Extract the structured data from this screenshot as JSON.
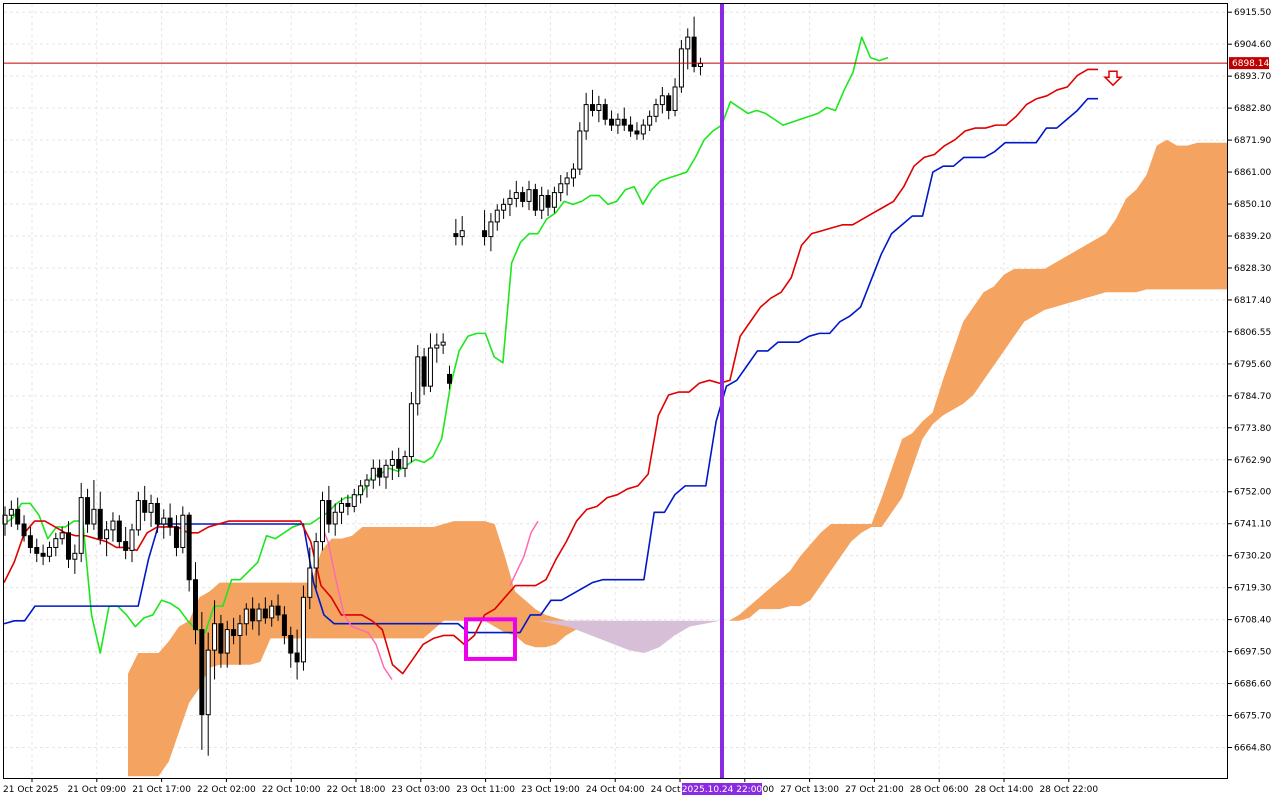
{
  "chart_data": {
    "type": "candlestick",
    "indicator": "ichimoku",
    "colors": {
      "background": "#ffffff",
      "grid": "#e6e6e6",
      "candle_body_up": "#ffffff",
      "candle_body_down": "#000000",
      "candle_wick": "#000000",
      "tenkan": "#e00000",
      "kijun": "#0018c8",
      "chikou": "#1ee61e",
      "cloud_bull": "#f4a460",
      "cloud_bear": "#d8bfd8",
      "current_price_line": "#c00000",
      "current_price_tag": "#c00000",
      "vertical_marker": "#8a2be2",
      "highlight_box": "#ee00ee",
      "pink_segment": "#ff69b4",
      "arrow": "#e00000"
    },
    "y_axis": {
      "ylim": [
        6654.4,
        6918.3
      ],
      "ticks": [
        "6915.50",
        "6904.60",
        "6893.70",
        "6882.80",
        "6871.90",
        "6861.00",
        "6850.10",
        "6839.20",
        "6828.30",
        "6817.40",
        "6806.55",
        "6795.60",
        "6784.70",
        "6773.80",
        "6762.90",
        "6752.00",
        "6741.10",
        "6730.20",
        "6719.30",
        "6708.40",
        "6697.50",
        "6686.60",
        "6675.70",
        "6664.80"
      ]
    },
    "x_axis": {
      "ticks": [
        "21 Oct 2025",
        "21 Oct 09:00",
        "21 Oct 17:00",
        "22 Oct 02:00",
        "22 Oct 10:00",
        "22 Oct 18:00",
        "23 Oct 03:00",
        "23 Oct 11:00",
        "23 Oct 19:00",
        "24 Oct 04:00",
        "24 Oct 12:00",
        "27 Oct 05:00",
        "27 Oct 13:00",
        "27 Oct 21:00",
        "28 Oct 06:00",
        "28 Oct 14:00",
        "28 Oct 22:00"
      ],
      "marker_label": "2025.10.24 22:00"
    },
    "current_price": "6898.14",
    "candles": [
      {
        "o": 6741,
        "h": 6747,
        "l": 6737,
        "c": 6744
      },
      {
        "o": 6744,
        "h": 6749,
        "l": 6740,
        "c": 6746
      },
      {
        "o": 6746,
        "h": 6750,
        "l": 6739,
        "c": 6741
      },
      {
        "o": 6741,
        "h": 6744,
        "l": 6735,
        "c": 6737
      },
      {
        "o": 6737,
        "h": 6740,
        "l": 6731,
        "c": 6733
      },
      {
        "o": 6733,
        "h": 6736,
        "l": 6728,
        "c": 6731
      },
      {
        "o": 6731,
        "h": 6734,
        "l": 6727,
        "c": 6730
      },
      {
        "o": 6730,
        "h": 6735,
        "l": 6728,
        "c": 6733
      },
      {
        "o": 6733,
        "h": 6738,
        "l": 6730,
        "c": 6736
      },
      {
        "o": 6736,
        "h": 6740,
        "l": 6734,
        "c": 6738
      },
      {
        "o": 6738,
        "h": 6742,
        "l": 6726,
        "c": 6729
      },
      {
        "o": 6729,
        "h": 6734,
        "l": 6724,
        "c": 6731
      },
      {
        "o": 6731,
        "h": 6755,
        "l": 6728,
        "c": 6750
      },
      {
        "o": 6750,
        "h": 6753,
        "l": 6738,
        "c": 6741
      },
      {
        "o": 6741,
        "h": 6756,
        "l": 6739,
        "c": 6746
      },
      {
        "o": 6746,
        "h": 6752,
        "l": 6734,
        "c": 6736
      },
      {
        "o": 6736,
        "h": 6742,
        "l": 6730,
        "c": 6739
      },
      {
        "o": 6739,
        "h": 6745,
        "l": 6735,
        "c": 6742
      },
      {
        "o": 6742,
        "h": 6744,
        "l": 6733,
        "c": 6735
      },
      {
        "o": 6735,
        "h": 6740,
        "l": 6729,
        "c": 6732
      },
      {
        "o": 6732,
        "h": 6741,
        "l": 6728,
        "c": 6739
      },
      {
        "o": 6739,
        "h": 6752,
        "l": 6737,
        "c": 6749
      },
      {
        "o": 6749,
        "h": 6754,
        "l": 6742,
        "c": 6745
      },
      {
        "o": 6745,
        "h": 6751,
        "l": 6740,
        "c": 6748
      },
      {
        "o": 6748,
        "h": 6750,
        "l": 6738,
        "c": 6741
      },
      {
        "o": 6741,
        "h": 6746,
        "l": 6736,
        "c": 6743
      },
      {
        "o": 6743,
        "h": 6748,
        "l": 6737,
        "c": 6740
      },
      {
        "o": 6740,
        "h": 6744,
        "l": 6730,
        "c": 6733
      },
      {
        "o": 6733,
        "h": 6747,
        "l": 6731,
        "c": 6744
      },
      {
        "o": 6744,
        "h": 6745,
        "l": 6718,
        "c": 6722
      },
      {
        "o": 6722,
        "h": 6728,
        "l": 6700,
        "c": 6705
      },
      {
        "o": 6705,
        "h": 6711,
        "l": 6664,
        "c": 6676
      },
      {
        "o": 6676,
        "h": 6704,
        "l": 6662,
        "c": 6698
      },
      {
        "o": 6698,
        "h": 6715,
        "l": 6688,
        "c": 6707
      },
      {
        "o": 6707,
        "h": 6710,
        "l": 6692,
        "c": 6697
      },
      {
        "o": 6697,
        "h": 6708,
        "l": 6692,
        "c": 6705
      },
      {
        "o": 6705,
        "h": 6709,
        "l": 6700,
        "c": 6703
      },
      {
        "o": 6703,
        "h": 6710,
        "l": 6693,
        "c": 6707
      },
      {
        "o": 6707,
        "h": 6714,
        "l": 6703,
        "c": 6712
      },
      {
        "o": 6712,
        "h": 6716,
        "l": 6705,
        "c": 6708
      },
      {
        "o": 6708,
        "h": 6714,
        "l": 6703,
        "c": 6712
      },
      {
        "o": 6712,
        "h": 6716,
        "l": 6707,
        "c": 6709
      },
      {
        "o": 6709,
        "h": 6715,
        "l": 6706,
        "c": 6713
      },
      {
        "o": 6713,
        "h": 6717,
        "l": 6708,
        "c": 6710
      },
      {
        "o": 6710,
        "h": 6713,
        "l": 6700,
        "c": 6703
      },
      {
        "o": 6703,
        "h": 6706,
        "l": 6692,
        "c": 6697
      },
      {
        "o": 6697,
        "h": 6705,
        "l": 6688,
        "c": 6694
      },
      {
        "o": 6694,
        "h": 6720,
        "l": 6691,
        "c": 6716
      },
      {
        "o": 6716,
        "h": 6733,
        "l": 6712,
        "c": 6726
      },
      {
        "o": 6726,
        "h": 6738,
        "l": 6719,
        "c": 6735
      },
      {
        "o": 6735,
        "h": 6752,
        "l": 6732,
        "c": 6749
      },
      {
        "o": 6749,
        "h": 6754,
        "l": 6738,
        "c": 6741
      },
      {
        "o": 6741,
        "h": 6748,
        "l": 6737,
        "c": 6745
      },
      {
        "o": 6745,
        "h": 6750,
        "l": 6741,
        "c": 6748
      },
      {
        "o": 6748,
        "h": 6751,
        "l": 6744,
        "c": 6747
      },
      {
        "o": 6747,
        "h": 6753,
        "l": 6745,
        "c": 6751
      },
      {
        "o": 6751,
        "h": 6756,
        "l": 6748,
        "c": 6754
      },
      {
        "o": 6754,
        "h": 6758,
        "l": 6750,
        "c": 6756
      },
      {
        "o": 6756,
        "h": 6763,
        "l": 6753,
        "c": 6760
      },
      {
        "o": 6760,
        "h": 6763,
        "l": 6754,
        "c": 6757
      },
      {
        "o": 6757,
        "h": 6763,
        "l": 6753,
        "c": 6761
      },
      {
        "o": 6761,
        "h": 6766,
        "l": 6756,
        "c": 6763
      },
      {
        "o": 6763,
        "h": 6767,
        "l": 6757,
        "c": 6760
      },
      {
        "o": 6760,
        "h": 6766,
        "l": 6757,
        "c": 6764
      },
      {
        "o": 6764,
        "h": 6786,
        "l": 6762,
        "c": 6782
      },
      {
        "o": 6782,
        "h": 6802,
        "l": 6778,
        "c": 6798
      },
      {
        "o": 6798,
        "h": 6801,
        "l": 6785,
        "c": 6788
      },
      {
        "o": 6788,
        "h": 6806,
        "l": 6786,
        "c": 6801
      },
      {
        "o": 6801,
        "h": 6806,
        "l": 6796,
        "c": 6802
      },
      {
        "o": 6802,
        "h": 6806,
        "l": 6799,
        "c": 6803
      },
      {
        "o": 6792,
        "h": 6795,
        "l": 6787,
        "c": 6789
      },
      {
        "o": 6840,
        "h": 6845,
        "l": 6836,
        "c": 6839
      },
      {
        "o": 6839,
        "h": 6846,
        "l": 6836,
        "c": 6841
      },
      {
        "o": 6841,
        "h": 6848,
        "l": 6836,
        "c": 6839
      },
      {
        "o": 6839,
        "h": 6847,
        "l": 6834,
        "c": 6844
      },
      {
        "o": 6844,
        "h": 6850,
        "l": 6841,
        "c": 6848
      },
      {
        "o": 6848,
        "h": 6852,
        "l": 6845,
        "c": 6850
      },
      {
        "o": 6850,
        "h": 6855,
        "l": 6846,
        "c": 6852
      },
      {
        "o": 6852,
        "h": 6858,
        "l": 6849,
        "c": 6854
      },
      {
        "o": 6854,
        "h": 6856,
        "l": 6849,
        "c": 6851
      },
      {
        "o": 6851,
        "h": 6858,
        "l": 6848,
        "c": 6855
      },
      {
        "o": 6855,
        "h": 6857,
        "l": 6846,
        "c": 6848
      },
      {
        "o": 6848,
        "h": 6856,
        "l": 6845,
        "c": 6853
      },
      {
        "o": 6853,
        "h": 6855,
        "l": 6846,
        "c": 6849
      },
      {
        "o": 6849,
        "h": 6856,
        "l": 6847,
        "c": 6854
      },
      {
        "o": 6854,
        "h": 6860,
        "l": 6851,
        "c": 6857
      },
      {
        "o": 6857,
        "h": 6861,
        "l": 6853,
        "c": 6859
      },
      {
        "o": 6859,
        "h": 6864,
        "l": 6856,
        "c": 6862
      },
      {
        "o": 6862,
        "h": 6878,
        "l": 6860,
        "c": 6875
      },
      {
        "o": 6875,
        "h": 6888,
        "l": 6872,
        "c": 6884
      },
      {
        "o": 6884,
        "h": 6889,
        "l": 6880,
        "c": 6882
      },
      {
        "o": 6882,
        "h": 6887,
        "l": 6878,
        "c": 6884
      },
      {
        "o": 6884,
        "h": 6886,
        "l": 6877,
        "c": 6879
      },
      {
        "o": 6879,
        "h": 6882,
        "l": 6875,
        "c": 6877
      },
      {
        "o": 6877,
        "h": 6881,
        "l": 6874,
        "c": 6879
      },
      {
        "o": 6879,
        "h": 6883,
        "l": 6875,
        "c": 6877
      },
      {
        "o": 6877,
        "h": 6880,
        "l": 6873,
        "c": 6875
      },
      {
        "o": 6875,
        "h": 6878,
        "l": 6872,
        "c": 6874
      },
      {
        "o": 6874,
        "h": 6879,
        "l": 6872,
        "c": 6877
      },
      {
        "o": 6877,
        "h": 6882,
        "l": 6875,
        "c": 6880
      },
      {
        "o": 6880,
        "h": 6886,
        "l": 6878,
        "c": 6884
      },
      {
        "o": 6884,
        "h": 6890,
        "l": 6881,
        "c": 6887
      },
      {
        "o": 6887,
        "h": 6888,
        "l": 6879,
        "c": 6882
      },
      {
        "o": 6882,
        "h": 6893,
        "l": 6880,
        "c": 6890
      },
      {
        "o": 6890,
        "h": 6906,
        "l": 6888,
        "c": 6903
      },
      {
        "o": 6903,
        "h": 6910,
        "l": 6896,
        "c": 6907
      },
      {
        "o": 6907,
        "h": 6914,
        "l": 6895,
        "c": 6897
      },
      {
        "o": 6897,
        "h": 6900,
        "l": 6894,
        "c": 6898
      }
    ],
    "tenkan": [
      6721,
      6728,
      6738,
      6742,
      6742,
      6740,
      6738,
      6737,
      6737,
      6736,
      6735,
      6733,
      6733,
      6732,
      6738,
      6740,
      6740,
      6740,
      6738,
      6738,
      6740,
      6741,
      6742,
      6742,
      6742,
      6742,
      6742,
      6742,
      6742,
      6742,
      6735,
      6720,
      6716,
      6710,
      6710,
      6710,
      6708,
      6705,
      6693,
      6690,
      6695,
      6700,
      6702,
      6703,
      6703,
      6700,
      6703,
      6710,
      6712,
      6716,
      6720,
      6720,
      6720,
      6722,
      6729,
      6735,
      6742,
      6746,
      6747,
      6750,
      6751,
      6753,
      6754,
      6758,
      6778,
      6785,
      6786,
      6786,
      6789,
      6790,
      6789,
      6790,
      6805,
      6810,
      6815,
      6818,
      6820,
      6825,
      6836,
      6840,
      6841,
      6842,
      6843,
      6843,
      6845,
      6847,
      6849,
      6851,
      6856,
      6863,
      6866,
      6867,
      6870,
      6872,
      6875,
      6876,
      6876,
      6877,
      6877,
      6880,
      6884,
      6886,
      6887,
      6889,
      6890,
      6894,
      6896,
      6896
    ],
    "kijun": [
      6707,
      6708,
      6708,
      6713,
      6713,
      6713,
      6713,
      6713,
      6713,
      6713,
      6713,
      6713,
      6713,
      6713,
      6729,
      6741,
      6741,
      6741,
      6741,
      6741,
      6741,
      6741,
      6741,
      6741,
      6741,
      6741,
      6741,
      6741,
      6741,
      6741,
      6721,
      6710,
      6707,
      6707,
      6707,
      6707,
      6707,
      6707,
      6707,
      6707,
      6707,
      6707,
      6707,
      6707,
      6707,
      6704,
      6704,
      6704,
      6704,
      6704,
      6704,
      6710,
      6710,
      6715,
      6715,
      6717,
      6719,
      6721,
      6722,
      6722,
      6722,
      6722,
      6722,
      6745,
      6745,
      6751,
      6754,
      6754,
      6754,
      6776,
      6788,
      6790,
      6795,
      6800,
      6800,
      6803,
      6803,
      6803,
      6805,
      6806,
      6806,
      6810,
      6812,
      6815,
      6824,
      6833,
      6840,
      6843,
      6846,
      6846,
      6861,
      6863,
      6863,
      6866,
      6866,
      6866,
      6868,
      6871,
      6871,
      6871,
      6871,
      6876,
      6876,
      6879,
      6882,
      6886,
      6886
    ],
    "chikou": [
      6741,
      6743,
      6748,
      6748,
      6744,
      6736,
      6740,
      6740,
      6742,
      6742,
      6710,
      6697,
      6713,
      6713,
      6710,
      6706,
      6709,
      6710,
      6715,
      6714,
      6712,
      6708,
      6705,
      6704,
      6713,
      6713,
      6722,
      6722,
      6725,
      6728,
      6737,
      6736,
      6738,
      6740,
      6741,
      6741,
      6743,
      6745,
      6748,
      6750,
      6750,
      6752,
      6757,
      6758,
      6760,
      6759,
      6761,
      6763,
      6762,
      6764,
      6770,
      6788,
      6800,
      6805,
      6806,
      6806,
      6798,
      6796,
      6830,
      6837,
      6840,
      6840,
      6845,
      6847,
      6851,
      6850,
      6851,
      6853,
      6853,
      6850,
      6851,
      6855,
      6856,
      6850,
      6855,
      6858,
      6859,
      6860,
      6861,
      6866,
      6872,
      6875,
      6877,
      6885,
      6883,
      6881,
      6882,
      6881,
      6879,
      6877,
      6878,
      6879,
      6880,
      6881,
      6883,
      6882,
      6889,
      6895,
      6907,
      6900,
      6899,
      6900
    ],
    "cloud_top": [
      6690,
      6697,
      6697,
      6697,
      6701,
      6706,
      6708,
      6716,
      6718,
      6721,
      6721,
      6721,
      6721,
      6721,
      6721,
      6721,
      6721,
      6721,
      6721,
      6732,
      6736,
      6736,
      6737,
      6740,
      6740,
      6740,
      6740,
      6740,
      6740,
      6740,
      6740,
      6741,
      6742,
      6742,
      6742,
      6742,
      6741,
      6730,
      6718,
      6715,
      6712,
      6710,
      6709,
      6708,
      6708,
      6708,
      6708,
      6708,
      6708,
      6708,
      6708,
      6708,
      6708,
      6708,
      6708,
      6708,
      6708,
      6708,
      6708,
      6708,
      6710,
      6713,
      6716,
      6719,
      6722,
      6725,
      6730,
      6734,
      6738,
      6741,
      6741,
      6741,
      6741,
      6741,
      6750,
      6760,
      6770,
      6772,
      6776,
      6779,
      6790,
      6800,
      6810,
      6815,
      6820,
      6822,
      6826,
      6828,
      6828,
      6828,
      6828,
      6830,
      6832,
      6834,
      6836,
      6838,
      6840,
      6845,
      6852,
      6855,
      6860,
      6870,
      6872,
      6870,
      6870,
      6871,
      6871,
      6871,
      6871
    ],
    "cloud_bottom": [
      6655,
      6655,
      6655,
      6655,
      6660,
      6670,
      6680,
      6685,
      6692,
      6693,
      6693,
      6693,
      6693,
      6694,
      6702,
      6702,
      6702,
      6702,
      6702,
      6702,
      6702,
      6702,
      6702,
      6702,
      6702,
      6702,
      6702,
      6702,
      6702,
      6702,
      6705,
      6708,
      6708,
      6708,
      6708,
      6708,
      6706,
      6704,
      6703,
      6700,
      6699,
      6699,
      6700,
      6703,
      6705,
      6707,
      6707,
      6708,
      6708,
      6708,
      6708,
      6708,
      6708,
      6708,
      6708,
      6708,
      6708,
      6708,
      6708,
      6708,
      6708,
      6709,
      6712,
      6712,
      6712,
      6713,
      6713,
      6715,
      6720,
      6725,
      6730,
      6735,
      6738,
      6740,
      6740,
      6745,
      6750,
      6760,
      6770,
      6775,
      6778,
      6780,
      6782,
      6785,
      6790,
      6795,
      6800,
      6805,
      6810,
      6812,
      6814,
      6815,
      6816,
      6817,
      6818,
      6819,
      6820,
      6820,
      6820,
      6820,
      6821,
      6821,
      6821,
      6821,
      6821,
      6821,
      6821,
      6821,
      6821
    ]
  }
}
